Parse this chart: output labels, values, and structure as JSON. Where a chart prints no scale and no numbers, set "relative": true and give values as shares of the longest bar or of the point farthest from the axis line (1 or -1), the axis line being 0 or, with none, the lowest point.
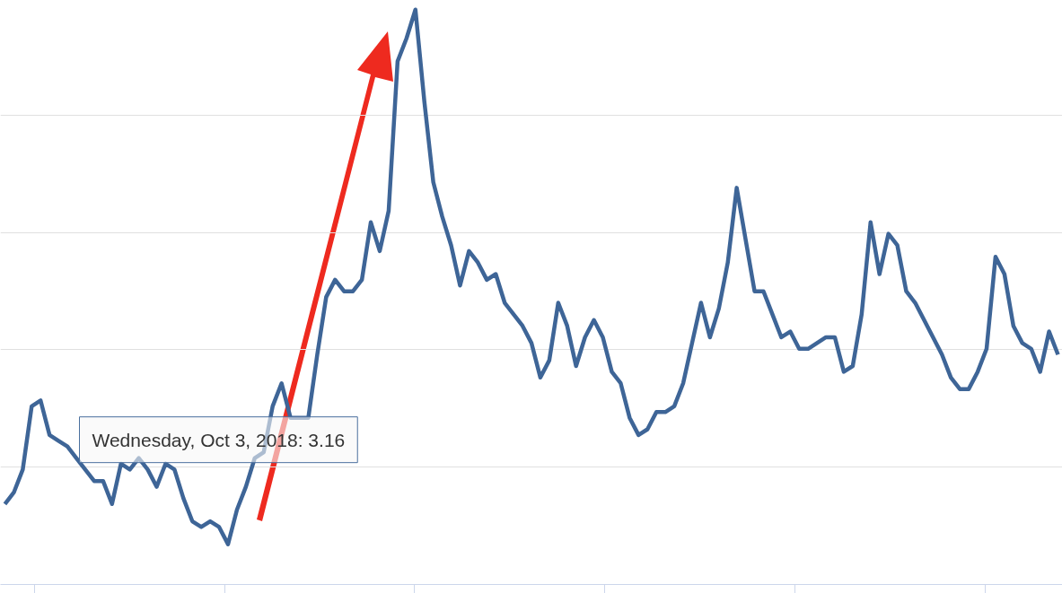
{
  "chart_data": {
    "type": "line",
    "relative": true,
    "grid": "y",
    "tick_labels": false,
    "line_style": "solid",
    "marker": "none",
    "categories": [
      null,
      null,
      null,
      null,
      null,
      null,
      null,
      null,
      null,
      null,
      null,
      null,
      null,
      null,
      null,
      null,
      null,
      null,
      null,
      null,
      null,
      null,
      null,
      null,
      null,
      null,
      null,
      null,
      null,
      null,
      null,
      null,
      null,
      null,
      null,
      null,
      null,
      null,
      null,
      null,
      null,
      null,
      null,
      null,
      null,
      null,
      null,
      null,
      null,
      null,
      null,
      null,
      null,
      null,
      null,
      null,
      null,
      null,
      null,
      null,
      null,
      null,
      null,
      null,
      null,
      null,
      null,
      null,
      null,
      null,
      null,
      null,
      null,
      null,
      null,
      null,
      null,
      null,
      null,
      null,
      null,
      null,
      null,
      null,
      null,
      null,
      null,
      null,
      null,
      null,
      null,
      null,
      null,
      null,
      null,
      null,
      null,
      null,
      null,
      null,
      null,
      null,
      null,
      null,
      null,
      null,
      null,
      null,
      null,
      null,
      null,
      null,
      null,
      null,
      null,
      null,
      null,
      null,
      null
    ],
    "series": [
      {
        "color": "#3e6597",
        "values": [
          0.14,
          0.16,
          0.2,
          0.31,
          0.32,
          0.26,
          0.25,
          0.24,
          0.22,
          0.2,
          0.18,
          0.18,
          0.14,
          0.21,
          0.2,
          0.22,
          0.2,
          0.17,
          0.21,
          0.2,
          0.15,
          0.11,
          0.1,
          0.11,
          0.1,
          0.07,
          0.13,
          0.17,
          0.22,
          0.23,
          0.31,
          0.35,
          0.29,
          0.29,
          0.29,
          0.4,
          0.5,
          0.53,
          0.51,
          0.51,
          0.53,
          0.63,
          0.58,
          0.65,
          0.91,
          0.95,
          1.0,
          0.84,
          0.7,
          0.64,
          0.59,
          0.52,
          0.58,
          0.56,
          0.53,
          0.54,
          0.49,
          0.47,
          0.45,
          0.42,
          0.36,
          0.39,
          0.49,
          0.45,
          0.38,
          0.43,
          0.46,
          0.43,
          0.37,
          0.35,
          0.29,
          0.26,
          0.27,
          0.3,
          0.3,
          0.31,
          0.35,
          0.42,
          0.49,
          0.43,
          0.48,
          0.56,
          0.69,
          0.6,
          0.51,
          0.51,
          0.47,
          0.43,
          0.44,
          0.41,
          0.41,
          0.42,
          0.43,
          0.43,
          0.37,
          0.38,
          0.47,
          0.63,
          0.54,
          0.61,
          0.59,
          0.51,
          0.49,
          0.46,
          0.43,
          0.4,
          0.36,
          0.34,
          0.34,
          0.37,
          0.41,
          0.57,
          0.54,
          0.45,
          0.42,
          0.41,
          0.37,
          0.44,
          0.4
        ]
      }
    ],
    "annotations": [
      "Wednesday, Oct 3, 2018: 3.16"
    ]
  }
}
